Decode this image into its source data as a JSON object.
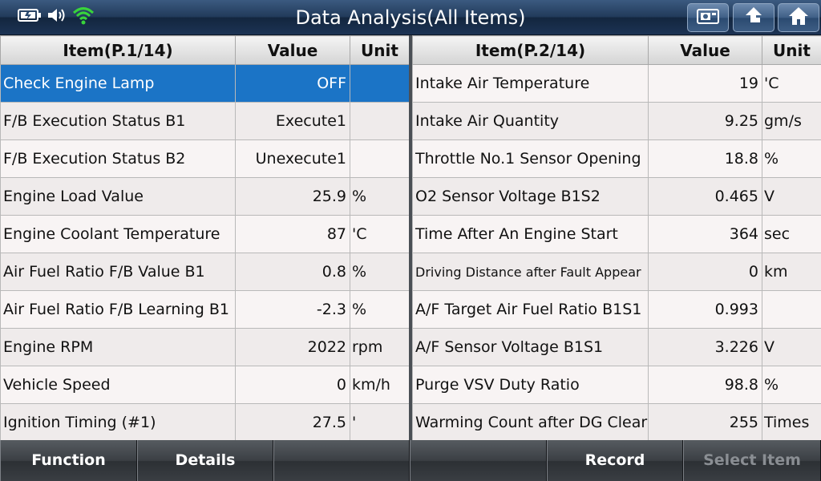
{
  "header": {
    "title": "Data Analysis(All Items)",
    "icons": [
      "battery-icon",
      "speaker-icon",
      "wifi-icon"
    ],
    "buttons": [
      "screenshot-icon",
      "back-up-icon",
      "home-icon"
    ]
  },
  "left_table": {
    "headers": {
      "item": "Item(P.1/14)",
      "value": "Value",
      "unit": "Unit"
    },
    "rows": [
      {
        "item": "Check Engine Lamp",
        "value": "OFF",
        "unit": ""
      },
      {
        "item": "F/B Execution Status B1",
        "value": "Execute1",
        "unit": ""
      },
      {
        "item": "F/B Execution Status B2",
        "value": "Unexecute1",
        "unit": ""
      },
      {
        "item": "Engine Load Value",
        "value": "25.9",
        "unit": "%"
      },
      {
        "item": "Engine Coolant Temperature",
        "value": "87",
        "unit": "'C"
      },
      {
        "item": "Air Fuel Ratio F/B Value B1",
        "value": "0.8",
        "unit": "%"
      },
      {
        "item": "Air Fuel Ratio F/B Learning B1",
        "value": "-2.3",
        "unit": "%"
      },
      {
        "item": "Engine RPM",
        "value": "2022",
        "unit": "rpm"
      },
      {
        "item": "Vehicle Speed",
        "value": "0",
        "unit": "km/h"
      },
      {
        "item": "Ignition Timing (#1)",
        "value": "27.5",
        "unit": "'"
      }
    ]
  },
  "right_table": {
    "headers": {
      "item": "Item(P.2/14)",
      "value": "Value",
      "unit": "Unit"
    },
    "rows": [
      {
        "item": "Intake Air Temperature",
        "value": "19",
        "unit": "'C"
      },
      {
        "item": "Intake Air Quantity",
        "value": "9.25",
        "unit": "gm/s"
      },
      {
        "item": "Throttle No.1 Sensor Opening",
        "value": "18.8",
        "unit": "%"
      },
      {
        "item": "O2 Sensor Voltage B1S2",
        "value": "0.465",
        "unit": "V"
      },
      {
        "item": "Time After An Engine Start",
        "value": "364",
        "unit": "sec"
      },
      {
        "item": "Driving Distance after Fault Appear",
        "value": "0",
        "unit": "km"
      },
      {
        "item": "A/F Target Air Fuel Ratio B1S1",
        "value": "0.993",
        "unit": ""
      },
      {
        "item": "A/F Sensor Voltage B1S1",
        "value": "3.226",
        "unit": "V"
      },
      {
        "item": "Purge VSV Duty Ratio",
        "value": "98.8",
        "unit": "%"
      },
      {
        "item": "Warming Count after DG Clear",
        "value": "255",
        "unit": "Times"
      }
    ]
  },
  "footer": {
    "buttons": [
      {
        "label": "Function",
        "enabled": true
      },
      {
        "label": "Details",
        "enabled": true
      },
      {
        "label": "",
        "enabled": true
      },
      {
        "label": "",
        "enabled": true
      },
      {
        "label": "Record",
        "enabled": true
      },
      {
        "label": "Select Item",
        "enabled": false
      }
    ]
  },
  "colors": {
    "selected_row": "#1b74c6",
    "header_bar": "#223b5b"
  }
}
